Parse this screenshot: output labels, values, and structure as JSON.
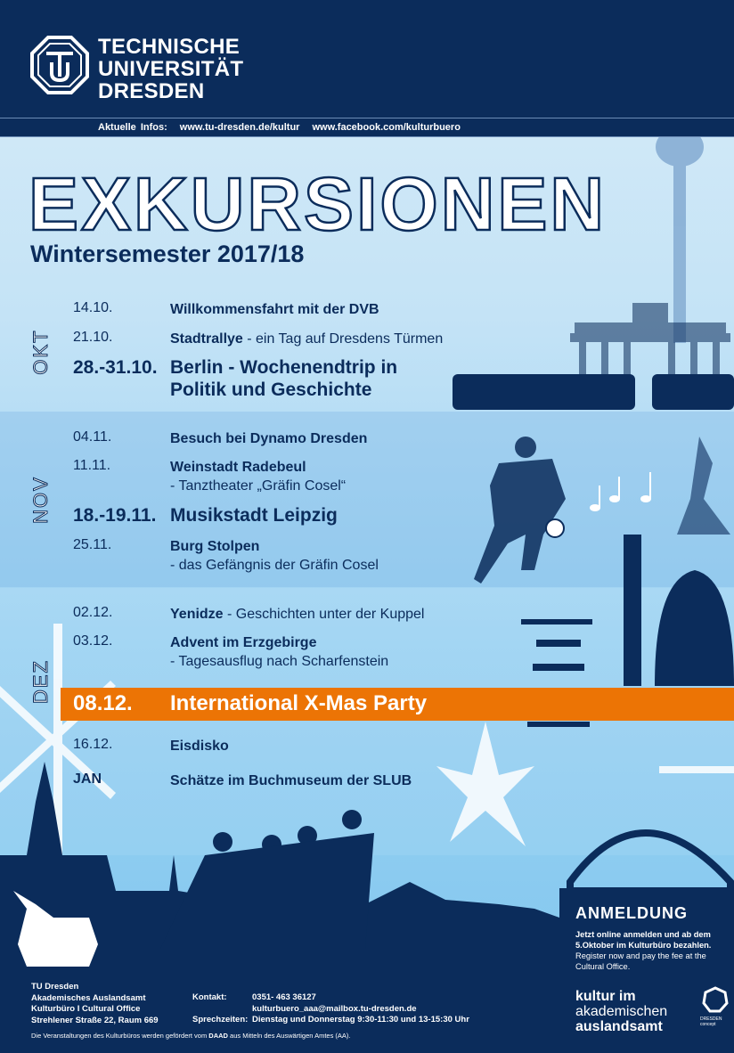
{
  "header": {
    "uni_lines": [
      "TECHNISCHE",
      "UNIVERSITÄT",
      "DRESDEN"
    ],
    "info_label": "Aktuelle Infos:",
    "info_links": [
      "www.tu-dresden.de/kultur",
      "www.facebook.com/kulturbuero"
    ]
  },
  "title": "EXKURSIONEN",
  "subtitle": "Wintersemester 2017/18",
  "months": [
    "OKT",
    "NOV",
    "DEZ"
  ],
  "events": {
    "okt": [
      {
        "date": "14.10.",
        "title": "Willkommensfahrt mit der DVB",
        "sub": ""
      },
      {
        "date": "21.10.",
        "title": "Stadtrallye",
        "sub": " - ein Tag auf Dresdens Türmen"
      },
      {
        "date": "28.-31.10.",
        "title": "Berlin - Wochenendtrip in",
        "title2": "Politik und Geschichte"
      }
    ],
    "nov": [
      {
        "date": "04.11.",
        "title": "Besuch bei Dynamo Dresden"
      },
      {
        "date": "11.11.",
        "title": "Weinstadt Radebeul",
        "sub": "- Tanztheater „Gräfin Cosel“"
      },
      {
        "date": "18.-19.11.",
        "title": "Musikstadt Leipzig"
      },
      {
        "date": "25.11.",
        "title": "Burg Stolpen",
        "sub": "- das Gefängnis der Gräfin Cosel"
      }
    ],
    "dez": [
      {
        "date": "02.12.",
        "title": "Yenidze",
        "sub": " - Geschichten unter der Kuppel"
      },
      {
        "date": "03.12.",
        "title": "Advent im Erzgebirge",
        "sub": "- Tagesausflug nach Scharfenstein"
      },
      {
        "date": "08.12.",
        "title": "International X-Mas Party"
      },
      {
        "date": "16.12.",
        "title": "Eisdisko"
      },
      {
        "date": "JAN",
        "title": "Schätze im Buchmuseum der SLUB"
      }
    ]
  },
  "anmeldung": {
    "title": "ANMELDUNG",
    "de": "Jetzt online anmelden und ab dem 5.Oktober im Kulturbüro bezahlen.",
    "en": "Register now and pay the fee at the Cultural Office.",
    "kultur": [
      "kultur im",
      "akademischen",
      "auslandsamt"
    ],
    "dresden_concept": "DRESDEN concept"
  },
  "footer": {
    "address": [
      "TU Dresden",
      "Akademisches Auslandsamt",
      "Kulturbüro I Cultural Office",
      "Strehlener Straße 22, Raum 669"
    ],
    "kontakt_label": "Kontakt:",
    "phone": "0351- 463 36127",
    "email": "kulturbuero_aaa@mailbox.tu-dresden.de",
    "hours_label": "Sprechzeiten:",
    "hours": "Dienstag und Donnerstag 9:30-11:30 und 13-15:30 Uhr",
    "note_pre": "Die Veranstaltungen des Kulturbüros werden gefördert vom ",
    "note_bold": "DAAD",
    "note_post": " aus Mitteln des Auswärtigen Amtes (AA)."
  },
  "colors": {
    "navy": "#0b2c5b",
    "orange": "#ec7405",
    "sky": "#9dd3f2"
  }
}
